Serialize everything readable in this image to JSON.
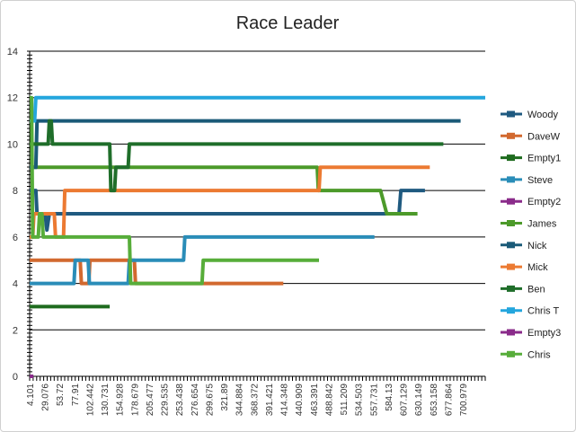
{
  "chart_data": {
    "type": "line",
    "title": "Race Leader",
    "xlabel": "",
    "ylabel": "",
    "ylim": [
      0,
      14
    ],
    "yticks": [
      0,
      2,
      4,
      6,
      8,
      10,
      12,
      14
    ],
    "xlim": [
      0,
      740
    ],
    "x_tick_labels": [
      "4.101",
      "29.076",
      "53.72",
      "77.91",
      "102.442",
      "130.731",
      "154.928",
      "178.679",
      "205.477",
      "229.535",
      "253.438",
      "276.654",
      "299.675",
      "321.89",
      "344.884",
      "368.372",
      "391.421",
      "414.348",
      "440.909",
      "463.391",
      "488.842",
      "511.209",
      "534.503",
      "557.731",
      "584.13",
      "607.129",
      "630.149",
      "653.158",
      "677.864",
      "700.979"
    ],
    "grid": "horizontal",
    "legend_position": "right",
    "series": [
      {
        "name": "Woody",
        "color": "#1f5a80",
        "points": [
          [
            0,
            8
          ],
          [
            10,
            8
          ],
          [
            12,
            7
          ],
          [
            25,
            7
          ],
          [
            28,
            6.3
          ],
          [
            32,
            7
          ],
          [
            70,
            7
          ],
          [
            600,
            7
          ],
          [
            603,
            8
          ],
          [
            642,
            8
          ]
        ]
      },
      {
        "name": "DaveW",
        "color": "#d2692f",
        "points": [
          [
            0,
            5
          ],
          [
            82,
            5
          ],
          [
            84,
            4
          ],
          [
            96,
            4
          ],
          [
            98,
            5
          ],
          [
            170,
            5
          ],
          [
            172,
            4
          ],
          [
            280,
            4
          ],
          [
            282,
            4
          ],
          [
            412,
            4
          ]
        ]
      },
      {
        "name": "Empty1",
        "color": "#1e6b1e",
        "points": [
          [
            0,
            3
          ],
          [
            130,
            3
          ]
        ]
      },
      {
        "name": "Steve",
        "color": "#2a8db8",
        "points": [
          [
            0,
            4
          ],
          [
            72,
            4
          ],
          [
            74,
            5
          ],
          [
            95,
            5
          ],
          [
            97,
            4
          ],
          [
            160,
            4
          ],
          [
            162,
            5
          ],
          [
            250,
            5
          ],
          [
            252,
            6
          ],
          [
            560,
            6
          ]
        ]
      },
      {
        "name": "Empty2",
        "color": "#8a2b8a",
        "points": [
          [
            0,
            0
          ],
          [
            6,
            0
          ]
        ]
      },
      {
        "name": "James",
        "color": "#4c9a2a",
        "points": [
          [
            0,
            9
          ],
          [
            160,
            9
          ],
          [
            162,
            9
          ],
          [
            467,
            9
          ],
          [
            469,
            8
          ],
          [
            570,
            8
          ],
          [
            580,
            7
          ],
          [
            630,
            7
          ]
        ]
      },
      {
        "name": "Nick",
        "color": "#1a5a78",
        "points": [
          [
            0,
            9
          ],
          [
            10,
            9
          ],
          [
            12,
            11
          ],
          [
            700,
            11
          ]
        ]
      },
      {
        "name": "Mick",
        "color": "#ec7a32",
        "points": [
          [
            0,
            6
          ],
          [
            5,
            6
          ],
          [
            7,
            7
          ],
          [
            25,
            7
          ],
          [
            28,
            7
          ],
          [
            40,
            7
          ],
          [
            42,
            6
          ],
          [
            55,
            6
          ],
          [
            57,
            8
          ],
          [
            470,
            8
          ],
          [
            472,
            9
          ],
          [
            650,
            9
          ]
        ]
      },
      {
        "name": "Ben",
        "color": "#1f6e2a",
        "points": [
          [
            0,
            10
          ],
          [
            30,
            10
          ],
          [
            32,
            11
          ],
          [
            35,
            11
          ],
          [
            37,
            10
          ],
          [
            130,
            10
          ],
          [
            132,
            8
          ],
          [
            138,
            8
          ],
          [
            140,
            9
          ],
          [
            160,
            9
          ],
          [
            162,
            10
          ],
          [
            672,
            10
          ]
        ]
      },
      {
        "name": "Chris T",
        "color": "#24a6dd",
        "points": [
          [
            0,
            11
          ],
          [
            8,
            11
          ],
          [
            10,
            12
          ],
          [
            740,
            12
          ]
        ]
      },
      {
        "name": "Empty3",
        "color": "#8a2b8a",
        "points": [
          [
            0,
            0
          ],
          [
            6,
            0
          ]
        ]
      },
      {
        "name": "Chris",
        "color": "#57ad3a",
        "points": [
          [
            0,
            12
          ],
          [
            3,
            12
          ],
          [
            5,
            6
          ],
          [
            14,
            6
          ],
          [
            16,
            7
          ],
          [
            20,
            7
          ],
          [
            22,
            6
          ],
          [
            42,
            6
          ],
          [
            44,
            6
          ],
          [
            60,
            6
          ],
          [
            62,
            6
          ],
          [
            162,
            6
          ],
          [
            164,
            4
          ],
          [
            280,
            4
          ],
          [
            282,
            5
          ],
          [
            470,
            5
          ]
        ]
      }
    ]
  }
}
